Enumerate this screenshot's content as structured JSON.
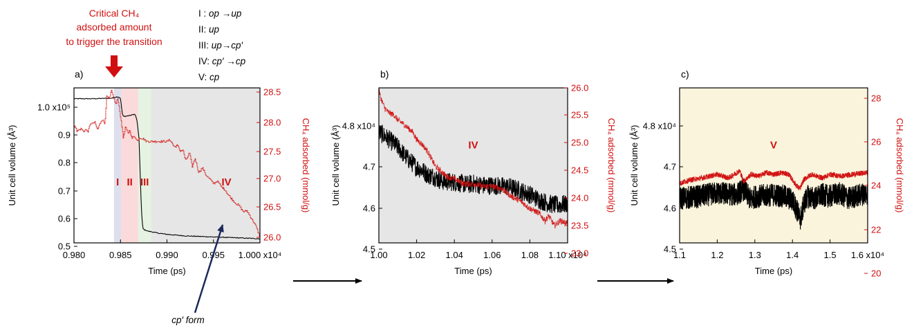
{
  "annotations": {
    "critical": [
      "Critical CH₄",
      "adsorbed amount",
      "to trigger the transition"
    ],
    "legend": [
      {
        "roman": "I :",
        "parts": [
          "op",
          " →",
          "up"
        ]
      },
      {
        "roman": "II:",
        "parts": [
          "up"
        ]
      },
      {
        "roman": "III:",
        "parts": [
          "up",
          "→",
          "cp′"
        ]
      },
      {
        "roman": "IV:",
        "parts": [
          "cp′",
          " →",
          "cp"
        ]
      },
      {
        "roman": "V:",
        "parts": [
          "cp"
        ]
      }
    ],
    "cp_form": "cp′ form"
  },
  "colors": {
    "volume": "#000000",
    "ch4": "#d01010",
    "stage_I": "#dde0ec",
    "stage_II": "#fadada",
    "stage_III": "#e6f2e2",
    "stage_IV": "#e6e6e6",
    "stage_V": "#fbf4dc",
    "cp_arrow": "#1c2a5c"
  },
  "chart_data": [
    {
      "type": "line",
      "panel_label": "a)",
      "xlabel": "Time (ps)",
      "ylabel": "Unit cell volume (Å³)",
      "y2label": "CH₄ adsorbed (mmol/g)",
      "x_ticks": [
        "0.980",
        "0.985",
        "0.990",
        "0.995",
        "1.000 x10⁴"
      ],
      "y_ticks": [
        "1.0 x10⁵",
        "0.9",
        "0.8",
        "0.7",
        "0.6",
        "0.5"
      ],
      "y2_ticks": [
        "28.5",
        "28.0",
        "27.5",
        "27.0",
        "26.5",
        "26.0"
      ],
      "xlim": [
        9800,
        10000
      ],
      "ylim": [
        46000,
        106000
      ],
      "y2lim": [
        25.85,
        28.6
      ],
      "stages": [
        {
          "label": "I",
          "x": [
            9843,
            9851
          ]
        },
        {
          "label": "II",
          "x": [
            9851,
            9869
          ]
        },
        {
          "label": "III",
          "x": [
            9869,
            9883
          ]
        },
        {
          "label": "IV",
          "x": [
            9883,
            10000
          ]
        }
      ],
      "series": [
        {
          "axis": "left",
          "x": [
            9800,
            9820,
            9840,
            9845,
            9848,
            9850,
            9851,
            9852,
            9853,
            9855,
            9860,
            9865,
            9866,
            9868,
            9870,
            9871,
            9872,
            9873,
            9874,
            9875,
            9876,
            9878,
            9880,
            9885,
            9890,
            9900,
            9920,
            9950,
            9980,
            10000
          ],
          "values": [
            101800,
            101800,
            102000,
            102500,
            102500,
            102000,
            99000,
            96000,
            95000,
            95000,
            95300,
            95800,
            95500,
            93000,
            86000,
            75000,
            64000,
            56000,
            51600,
            51300,
            51000,
            50800,
            50500,
            50200,
            49800,
            49300,
            48700,
            48300,
            47900,
            47600
          ]
        },
        {
          "axis": "right",
          "x": [
            9800,
            9802,
            9803,
            9808,
            9810,
            9812,
            9815,
            9818,
            9820,
            9822,
            9825,
            9828,
            9830,
            9833,
            9835,
            9838,
            9840,
            9842,
            9845,
            9847,
            9849,
            9851,
            9853,
            9855,
            9858,
            9860,
            9862,
            9865,
            9868,
            9870,
            9874,
            9878,
            9882,
            9885,
            9888,
            9890,
            9892,
            9894,
            9897,
            9900,
            9903,
            9906,
            9908,
            9911,
            9914,
            9917,
            9920,
            9924,
            9927,
            9930,
            9934,
            9938,
            9942,
            9946,
            9950,
            9954,
            9958,
            9962,
            9966,
            9970,
            9974,
            9978,
            9982,
            9986,
            9990,
            9994,
            9997,
            10000
          ],
          "values": [
            27.9,
            27.92,
            27.83,
            27.88,
            27.82,
            27.86,
            27.83,
            27.98,
            27.96,
            28.0,
            27.86,
            27.97,
            28.05,
            27.96,
            28.45,
            28.4,
            28.55,
            28.45,
            28.3,
            28.42,
            28.2,
            27.95,
            27.7,
            27.9,
            27.8,
            27.85,
            27.7,
            27.75,
            27.65,
            27.72,
            27.7,
            27.65,
            27.65,
            27.65,
            27.65,
            27.65,
            27.65,
            27.65,
            27.65,
            27.65,
            27.68,
            27.6,
            27.55,
            27.58,
            27.48,
            27.5,
            27.3,
            27.45,
            27.2,
            27.35,
            27.1,
            27.18,
            27.05,
            26.98,
            26.9,
            26.95,
            26.85,
            26.8,
            26.7,
            26.62,
            26.55,
            26.5,
            26.4,
            26.42,
            26.3,
            26.2,
            26.08,
            25.95
          ]
        }
      ]
    },
    {
      "type": "line",
      "panel_label": "b)",
      "xlabel": "Time (ps)",
      "ylabel": "Unit cell volume (Å³)",
      "y2label": "CH₄ adsorbed (mmol/g)",
      "x_ticks": [
        "1.00",
        "1.02",
        "1.04",
        "1.06",
        "1.08",
        "1.10 x10⁴"
      ],
      "y_ticks": [
        "4.8 x10⁴",
        "4.7",
        "4.6",
        "4.5"
      ],
      "y2_ticks": [
        "26.0",
        "25.5",
        "25.0",
        "24.5",
        "24.0",
        "23.5",
        "23.0"
      ],
      "xlim": [
        10000,
        11000
      ],
      "ylim": [
        44620,
        48880
      ],
      "y2lim": [
        22.85,
        26.0
      ],
      "stages": [
        {
          "label": "IV",
          "x": [
            10000,
            11000
          ]
        }
      ],
      "series": [
        {
          "axis": "left",
          "x": [
            10000,
            10020,
            10050,
            10080,
            10110,
            10140,
            10170,
            10200,
            10230,
            10260,
            10290,
            10320,
            10350,
            10380,
            10410,
            10440,
            10470,
            10500,
            10550,
            10600,
            10650,
            10700,
            10750,
            10800,
            10850,
            10900,
            10950,
            11000
          ],
          "values": [
            47650,
            47600,
            47480,
            47350,
            47200,
            47000,
            46850,
            46700,
            46620,
            46480,
            46450,
            46350,
            46300,
            46300,
            46280,
            46250,
            46220,
            46250,
            46200,
            46200,
            46180,
            46150,
            46050,
            45950,
            45800,
            45700,
            45650,
            45700
          ]
        },
        {
          "axis": "right",
          "x": [
            10000,
            10010,
            10030,
            10050,
            10080,
            10100,
            10120,
            10150,
            10180,
            10200,
            10230,
            10260,
            10280,
            10300,
            10330,
            10360,
            10400,
            10450,
            10500,
            10550,
            10600,
            10650,
            10700,
            10750,
            10800,
            10850,
            10880,
            10900,
            10930,
            10960,
            11000
          ],
          "values": [
            25.95,
            25.8,
            25.6,
            25.5,
            25.45,
            25.35,
            25.3,
            25.2,
            25.1,
            24.95,
            24.85,
            24.7,
            24.55,
            24.4,
            24.3,
            24.2,
            24.15,
            24.05,
            24.05,
            24.0,
            24.0,
            23.95,
            23.8,
            23.7,
            23.55,
            23.45,
            23.3,
            23.4,
            23.2,
            23.3,
            23.25
          ]
        }
      ]
    },
    {
      "type": "line",
      "panel_label": "c)",
      "xlabel": "Time (ps)",
      "ylabel": "Unit cell volume (Å³)",
      "y2label": "CH₄ adsorbed (mmol/g)",
      "x_ticks": [
        "1.1",
        "1.2",
        "1.3",
        "1.4",
        "1.5",
        "1.6 x10⁴"
      ],
      "y_ticks": [
        "4.8 x10⁴",
        "4.7",
        "4.6",
        "4.5"
      ],
      "y2_ticks": [
        "28",
        "26",
        "24",
        "22",
        "20"
      ],
      "xlim": [
        11000,
        16000
      ],
      "ylim": [
        44500,
        48850
      ],
      "y2lim": [
        20,
        28.6
      ],
      "stages": [
        {
          "label": "V",
          "x": [
            11000,
            16000
          ]
        }
      ],
      "series": [
        {
          "axis": "left",
          "x": [
            11000,
            11500,
            12000,
            12500,
            12700,
            12900,
            13000,
            13500,
            13800,
            14000,
            14150,
            14200,
            14250,
            14300,
            14400,
            14600,
            14800,
            15000,
            15200,
            15500,
            15800,
            16000
          ],
          "values": [
            45750,
            45800,
            45900,
            45850,
            46000,
            45700,
            45800,
            45850,
            45800,
            45700,
            45350,
            45150,
            45300,
            45600,
            45800,
            45750,
            45850,
            45800,
            45900,
            45750,
            45850,
            45900
          ]
        },
        {
          "axis": "right",
          "x": [
            11000,
            11300,
            11600,
            12000,
            12300,
            12600,
            12700,
            12900,
            13100,
            13300,
            13500,
            13700,
            13900,
            14000,
            14100,
            14200,
            14300,
            14500,
            14800,
            15000,
            15300,
            15600,
            16000
          ],
          "values": [
            23.3,
            23.5,
            23.6,
            23.8,
            23.6,
            24.0,
            23.4,
            23.8,
            23.7,
            23.9,
            23.8,
            23.9,
            23.8,
            23.5,
            23.2,
            23.0,
            23.5,
            23.8,
            23.6,
            23.8,
            23.7,
            23.8,
            23.9
          ]
        }
      ]
    }
  ]
}
